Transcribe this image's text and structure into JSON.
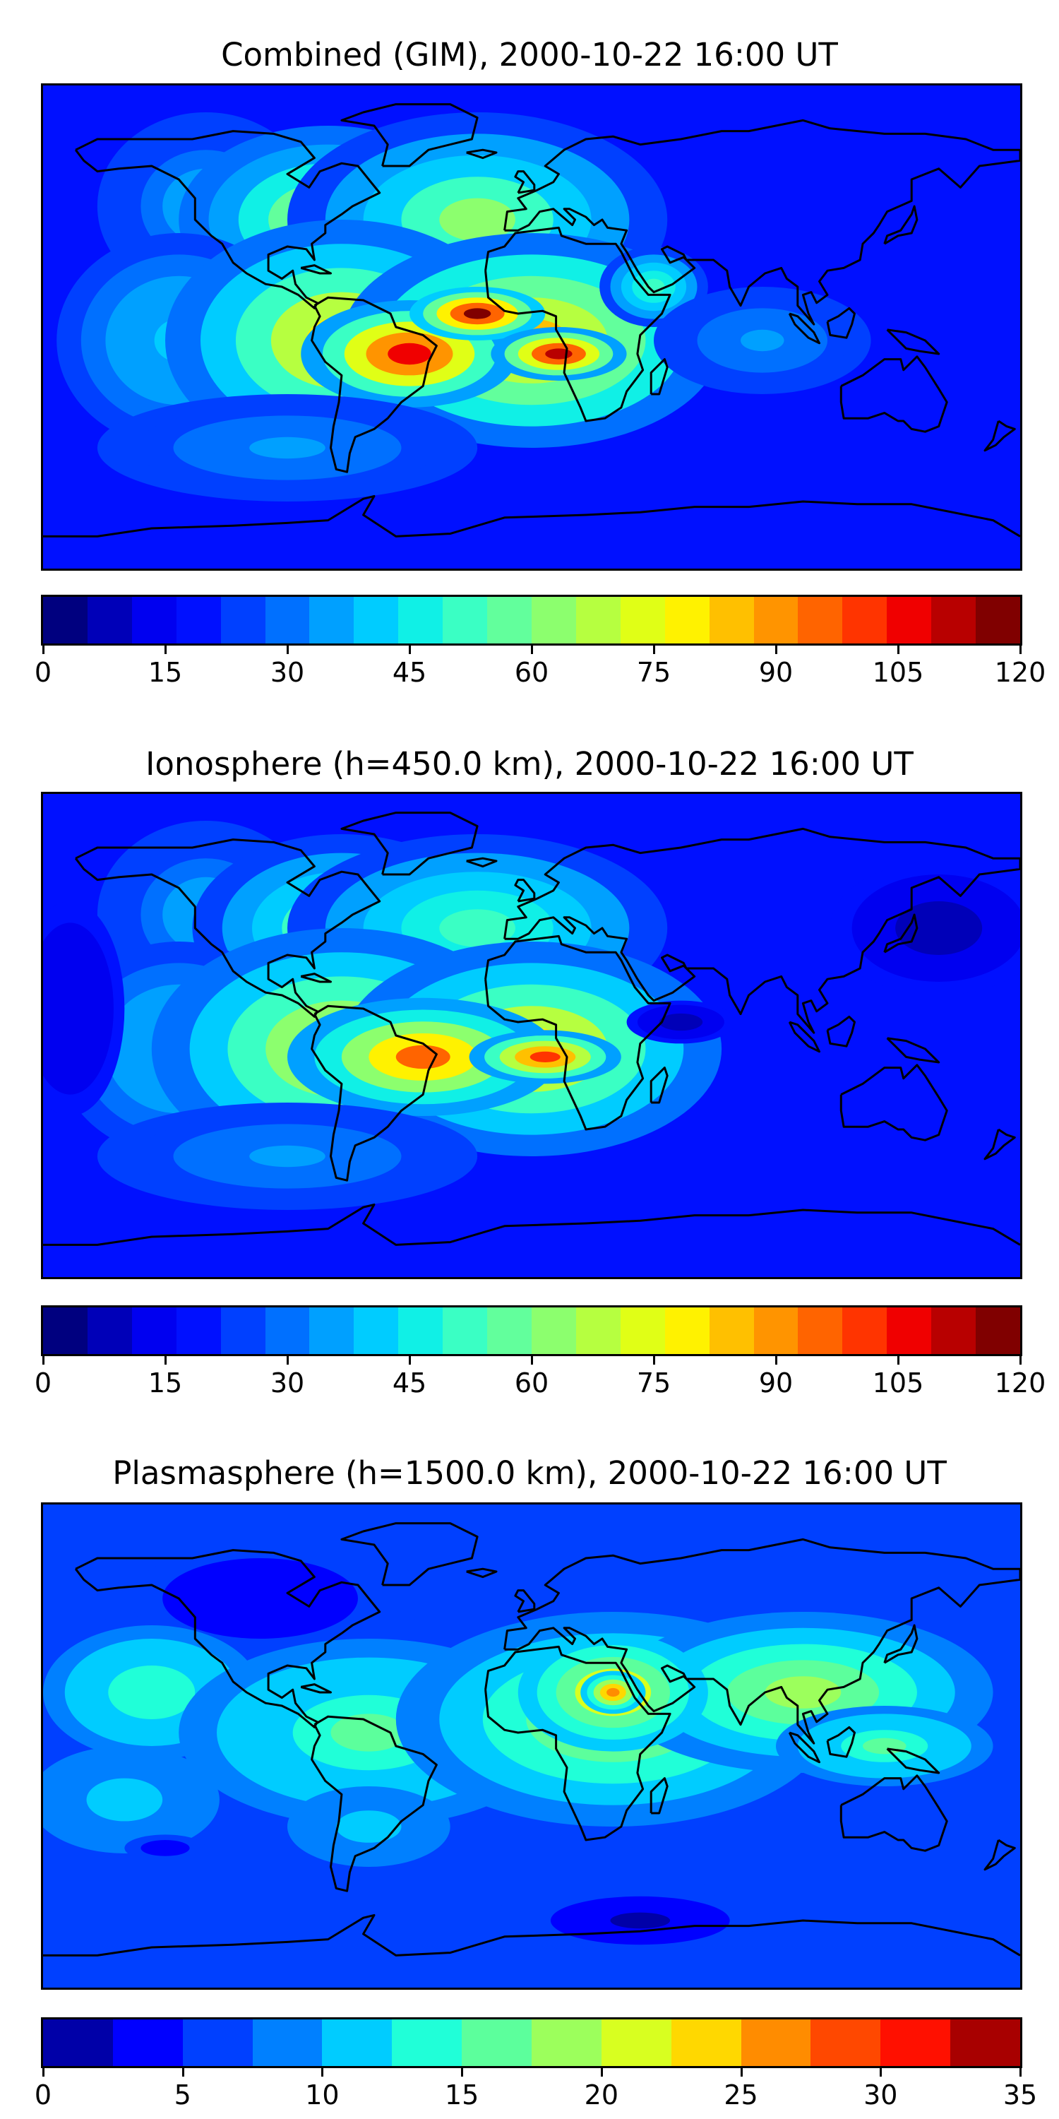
{
  "panels": [
    {
      "title": "Combined (GIM), 2000-10-22 16:00 UT",
      "colorbar": {
        "min": 0,
        "max": 120,
        "ticks": [
          "0",
          "15",
          "30",
          "45",
          "60",
          "75",
          "90",
          "105",
          "120"
        ],
        "colors": [
          "#00007f",
          "#0000b8",
          "#0000f0",
          "#0010ff",
          "#0040ff",
          "#0070ff",
          "#00a0ff",
          "#00ccff",
          "#10f0e6",
          "#3affc4",
          "#62ff9c",
          "#8cff6e",
          "#b6ff40",
          "#e0ff16",
          "#fff200",
          "#ffc000",
          "#ff9400",
          "#ff6400",
          "#ff3400",
          "#f00000",
          "#b80000",
          "#800000"
        ]
      },
      "blobs": [
        {
          "lon": -120,
          "lat": 45,
          "rx": 40,
          "ry": 35,
          "level": 0.3
        },
        {
          "lon": -75,
          "lat": 40,
          "rx": 55,
          "ry": 35,
          "level": 0.55
        },
        {
          "lon": -20,
          "lat": 40,
          "rx": 70,
          "ry": 40,
          "level": 0.5
        },
        {
          "lon": -130,
          "lat": -5,
          "rx": 45,
          "ry": 40,
          "level": 0.35
        },
        {
          "lon": -70,
          "lat": -5,
          "rx": 65,
          "ry": 45,
          "level": 0.65
        },
        {
          "lon": 0,
          "lat": -5,
          "rx": 70,
          "ry": 40,
          "level": 0.7
        },
        {
          "lon": -45,
          "lat": -10,
          "rx": 40,
          "ry": 20,
          "level": 0.92
        },
        {
          "lon": -20,
          "lat": 5,
          "rx": 25,
          "ry": 10,
          "level": 1.0
        },
        {
          "lon": 10,
          "lat": -10,
          "rx": 25,
          "ry": 10,
          "level": 0.95
        },
        {
          "lon": 45,
          "lat": 15,
          "rx": 20,
          "ry": 15,
          "level": 0.45
        },
        {
          "lon": 85,
          "lat": -5,
          "rx": 40,
          "ry": 20,
          "level": 0.28
        },
        {
          "lon": -90,
          "lat": -45,
          "rx": 70,
          "ry": 20,
          "level": 0.28
        }
      ]
    },
    {
      "title": "Ionosphere  (h=450.0 km), 2000-10-22 16:00 UT",
      "colorbar": {
        "min": 0,
        "max": 120,
        "ticks": [
          "0",
          "15",
          "30",
          "45",
          "60",
          "75",
          "90",
          "105",
          "120"
        ],
        "colors": [
          "#00007f",
          "#0000b8",
          "#0000f0",
          "#0010ff",
          "#0040ff",
          "#0070ff",
          "#00a0ff",
          "#00ccff",
          "#10f0e6",
          "#3affc4",
          "#62ff9c",
          "#8cff6e",
          "#b6ff40",
          "#e0ff16",
          "#fff200",
          "#ffc000",
          "#ff9400",
          "#ff6400",
          "#ff3400",
          "#f00000",
          "#b80000",
          "#800000"
        ]
      },
      "blobs": [
        {
          "lon": -120,
          "lat": 45,
          "rx": 40,
          "ry": 35,
          "level": 0.3
        },
        {
          "lon": -70,
          "lat": 40,
          "rx": 55,
          "ry": 35,
          "level": 0.5
        },
        {
          "lon": -20,
          "lat": 40,
          "rx": 70,
          "ry": 35,
          "level": 0.45
        },
        {
          "lon": -130,
          "lat": -5,
          "rx": 45,
          "ry": 40,
          "level": 0.35
        },
        {
          "lon": -70,
          "lat": -5,
          "rx": 70,
          "ry": 45,
          "level": 0.62
        },
        {
          "lon": 0,
          "lat": -5,
          "rx": 70,
          "ry": 40,
          "level": 0.65
        },
        {
          "lon": -40,
          "lat": -8,
          "rx": 50,
          "ry": 22,
          "level": 0.8
        },
        {
          "lon": 5,
          "lat": -8,
          "rx": 28,
          "ry": 10,
          "level": 0.88
        },
        {
          "lon": 55,
          "lat": 5,
          "rx": 20,
          "ry": 8,
          "level": 0.05
        },
        {
          "lon": 150,
          "lat": 40,
          "rx": 40,
          "ry": 25,
          "level": 0.05
        },
        {
          "lon": -170,
          "lat": 10,
          "rx": 20,
          "ry": 40,
          "level": 0.08
        },
        {
          "lon": -90,
          "lat": -45,
          "rx": 70,
          "ry": 20,
          "level": 0.28
        }
      ]
    },
    {
      "title": "Plasmasphere (h=1500.0 km), 2000-10-22 16:00 UT",
      "colorbar": {
        "min": 0,
        "max": 35,
        "ticks": [
          "0",
          "5",
          "10",
          "15",
          "20",
          "25",
          "30",
          "35"
        ],
        "colors": [
          "#0000a8",
          "#0000ff",
          "#0040ff",
          "#0080ff",
          "#00ccff",
          "#20ffd8",
          "#5cff9c",
          "#9cff5c",
          "#d8ff20",
          "#ffd800",
          "#ff8c00",
          "#ff4800",
          "#ff1000",
          "#a80000"
        ]
      },
      "blobs": [
        {
          "lon": -100,
          "lat": 55,
          "rx": 60,
          "ry": 25,
          "level": 0.05
        },
        {
          "lon": -140,
          "lat": 20,
          "rx": 40,
          "ry": 25,
          "level": 0.42
        },
        {
          "lon": -60,
          "lat": 5,
          "rx": 70,
          "ry": 35,
          "level": 0.45
        },
        {
          "lon": 30,
          "lat": 10,
          "rx": 80,
          "ry": 40,
          "level": 0.52
        },
        {
          "lon": 100,
          "lat": 20,
          "rx": 70,
          "ry": 30,
          "level": 0.5
        },
        {
          "lon": 30,
          "lat": 20,
          "rx": 35,
          "ry": 22,
          "level": 0.68
        },
        {
          "lon": 30,
          "lat": 20,
          "rx": 12,
          "ry": 8,
          "level": 0.78
        },
        {
          "lon": 130,
          "lat": 0,
          "rx": 40,
          "ry": 15,
          "level": 0.45
        },
        {
          "lon": -150,
          "lat": -20,
          "rx": 35,
          "ry": 20,
          "level": 0.3
        },
        {
          "lon": -135,
          "lat": -38,
          "rx": 15,
          "ry": 5,
          "level": 0.05
        },
        {
          "lon": 40,
          "lat": -65,
          "rx": 55,
          "ry": 15,
          "level": 0.03
        },
        {
          "lon": -60,
          "lat": -30,
          "rx": 30,
          "ry": 15,
          "level": 0.3
        }
      ]
    }
  ],
  "coastline_color": "#000000"
}
